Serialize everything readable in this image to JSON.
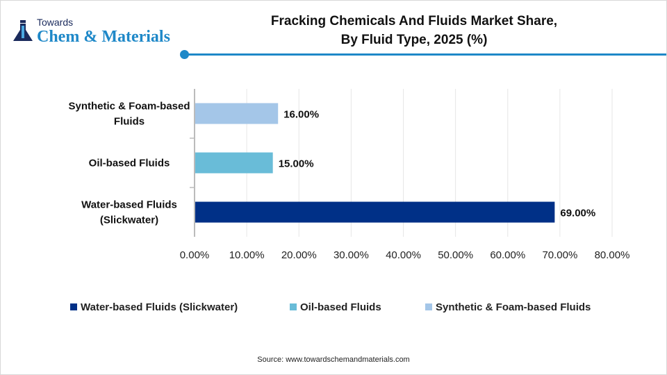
{
  "logo": {
    "line1": "Towards",
    "line2": "Chem & Materials"
  },
  "title_line1": "Fracking Chemicals And Fluids Market Share,",
  "title_line2": "By Fluid Type, 2025 (%)",
  "source": "Source: www.towardschemandmaterials.com",
  "chart_data": {
    "type": "bar",
    "orientation": "horizontal",
    "title": "Fracking Chemicals And Fluids Market Share, By Fluid Type, 2025 (%)",
    "categories": [
      "Water-based Fluids (Slickwater)",
      "Oil-based Fluids",
      "Synthetic & Foam-based Fluids"
    ],
    "category_label_lines": [
      [
        "Water-based Fluids",
        "(Slickwater)"
      ],
      [
        "Oil-based Fluids"
      ],
      [
        "Synthetic & Foam-based",
        "Fluids"
      ]
    ],
    "values": [
      69,
      15,
      16
    ],
    "data_labels": [
      "69.00%",
      "15.00%",
      "16.00%"
    ],
    "colors": [
      "#003087",
      "#69BCD8",
      "#A4C6E8"
    ],
    "xlim": [
      0,
      80
    ],
    "xticks": [
      "0.00%",
      "10.00%",
      "20.00%",
      "30.00%",
      "40.00%",
      "50.00%",
      "60.00%",
      "70.00%",
      "80.00%"
    ],
    "grid": true,
    "legend": {
      "placement": "bottom",
      "entries": [
        "Water-based Fluids (Slickwater)",
        "Oil-based Fluids",
        "Synthetic & Foam-based Fluids"
      ]
    }
  }
}
